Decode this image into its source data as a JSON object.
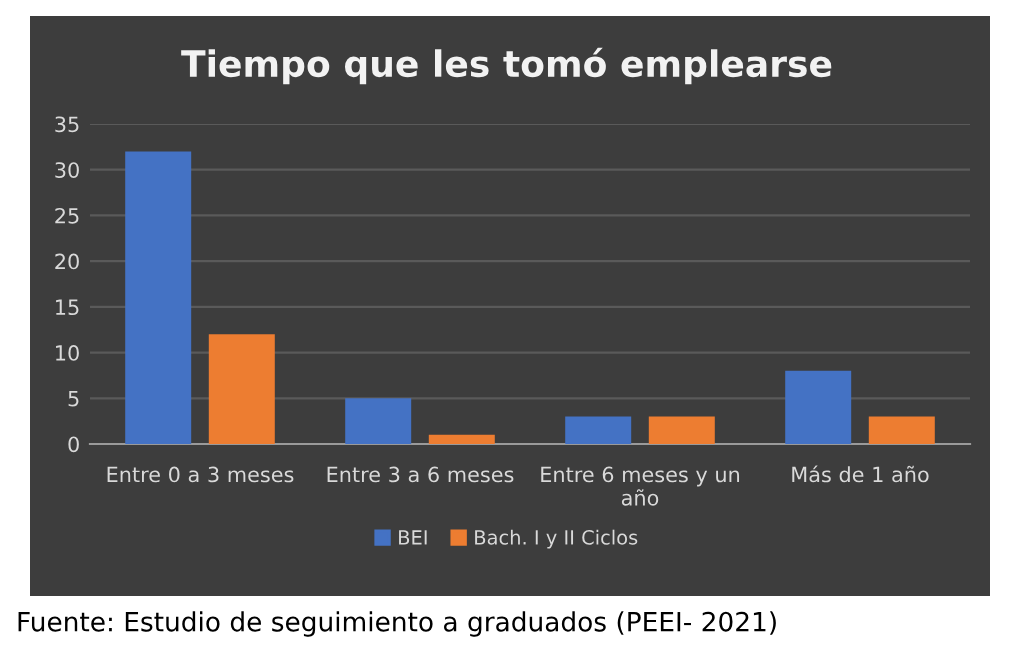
{
  "chart_data": {
    "type": "bar",
    "title": "Tiempo que les tomó emplearse",
    "categories": [
      "Entre 0 a 3 meses",
      "Entre 3 a 6 meses",
      "Entre 6 meses y un\naño",
      "Más de 1 año"
    ],
    "series": [
      {
        "name": "BEI",
        "color": "#4472c4",
        "values": [
          32,
          5,
          3,
          8
        ]
      },
      {
        "name": "Bach. I y II Ciclos",
        "color": "#ed7d31",
        "values": [
          12,
          1,
          3,
          3
        ]
      }
    ],
    "ylim": [
      0,
      35
    ],
    "yticks": [
      0,
      5,
      10,
      15,
      20,
      25,
      30,
      35
    ],
    "grid": "y",
    "legend": "bottom",
    "annotations": [
      "Fuente: Estudio de seguimiento a graduados (PEEI- 2021)"
    ]
  }
}
